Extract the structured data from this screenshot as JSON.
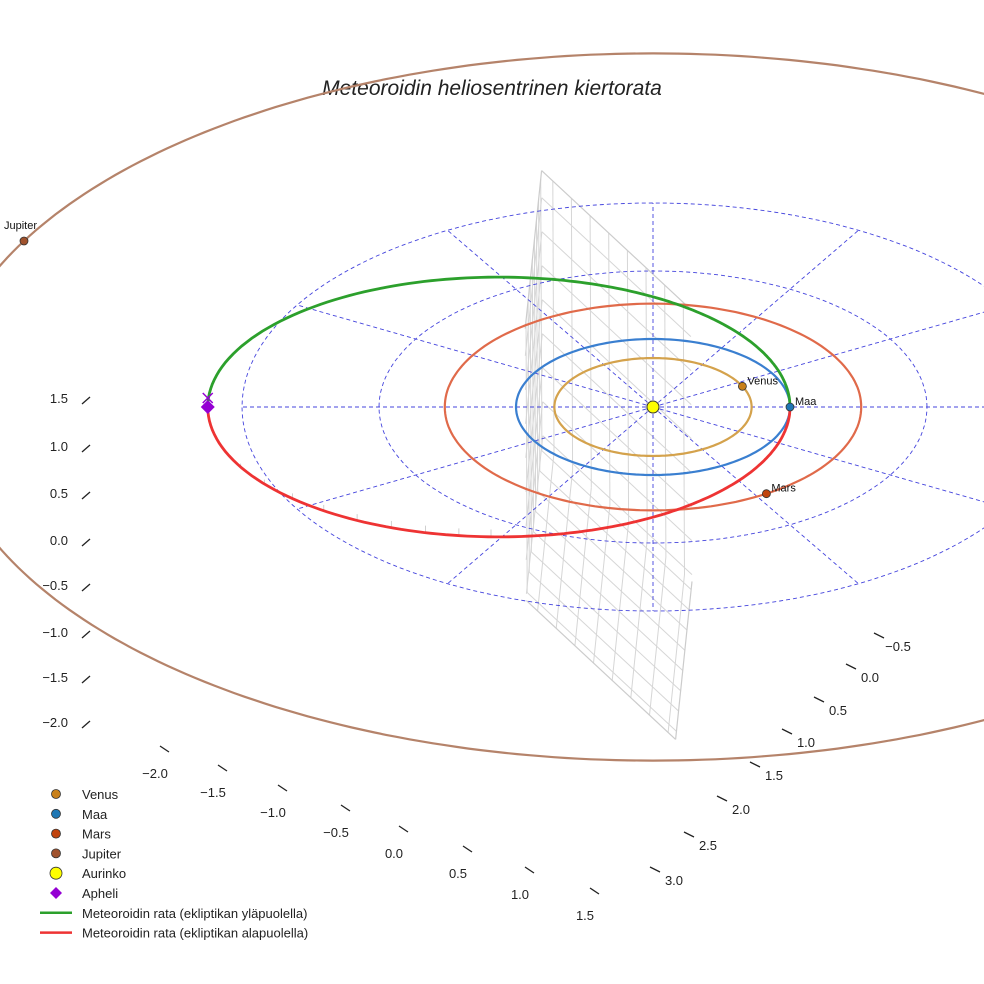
{
  "chart_data": {
    "type": "line",
    "projection": "3d",
    "title": "Meteoroidin heliosentrinen kiertorata",
    "axes": {
      "x": {
        "ticks": [
          "−2.0",
          "−1.5",
          "−1.0",
          "−0.5",
          "0.0",
          "0.5",
          "1.0",
          "1.5"
        ],
        "range": [
          -2.3,
          1.7
        ]
      },
      "y": {
        "ticks": [
          "−0.5",
          "0.0",
          "0.5",
          "1.0",
          "1.5",
          "2.0",
          "2.5",
          "3.0"
        ],
        "range": [
          -0.7,
          3.2
        ]
      },
      "z": {
        "ticks": [
          "1.5",
          "1.0",
          "0.5",
          "0.0",
          "−0.5",
          "−1.0",
          "−1.5",
          "−2.0"
        ],
        "range": [
          -2.1,
          1.9
        ]
      }
    },
    "grid": true,
    "sun": {
      "name": "Aurinko",
      "x": 0,
      "y": 0,
      "z": 0,
      "color": "#ffff00"
    },
    "planets": [
      {
        "name": "Venus",
        "semi_major_axis_au": 0.72,
        "orbit_color": "#d4a24c",
        "marker_color": "#c8801a",
        "angle_deg": 25
      },
      {
        "name": "Maa",
        "semi_major_axis_au": 1.0,
        "orbit_color": "#3a7fd0",
        "marker_color": "#1f77b4",
        "angle_deg": 0
      },
      {
        "name": "Mars",
        "semi_major_axis_au": 1.52,
        "orbit_color": "#e06a4a",
        "marker_color": "#c1440e",
        "angle_deg": -57
      },
      {
        "name": "Jupiter",
        "semi_major_axis_au": 5.2,
        "orbit_color": "#b5836a",
        "marker_color": "#a0522d",
        "angle_deg": 152
      }
    ],
    "ecliptic_grid": {
      "rings_au": [
        1,
        2,
        3
      ],
      "spokes": 12,
      "color": "#4444dd"
    },
    "meteoroid_orbit": {
      "perihelion_au": 1.0,
      "aphelion_au": 3.25,
      "above_ecliptic": {
        "name": "Meteoroidin rata (ekliptikan yläpuolella)",
        "color": "#2ca02c"
      },
      "below_ecliptic": {
        "name": "Meteoroidin rata (ekliptikan alapuolella)",
        "color": "#ee3333"
      }
    },
    "aphelion": {
      "name": "Apheli",
      "color": "#9400d3"
    },
    "legend": [
      {
        "label": "Venus",
        "kind": "dot",
        "color": "#c8801a"
      },
      {
        "label": "Maa",
        "kind": "dot",
        "color": "#1f77b4"
      },
      {
        "label": "Mars",
        "kind": "dot",
        "color": "#c1440e"
      },
      {
        "label": "Jupiter",
        "kind": "dot",
        "color": "#a0522d"
      },
      {
        "label": "Aurinko",
        "kind": "sun",
        "color": "#ffff00"
      },
      {
        "label": "Apheli",
        "kind": "diamond",
        "color": "#9400d3"
      },
      {
        "label": "Meteoroidin rata (ekliptikan yläpuolella)",
        "kind": "line",
        "color": "#2ca02c"
      },
      {
        "label": "Meteoroidin rata (ekliptikan alapuolella)",
        "kind": "line",
        "color": "#ee3333"
      }
    ],
    "legend_position": "bottom-left"
  }
}
